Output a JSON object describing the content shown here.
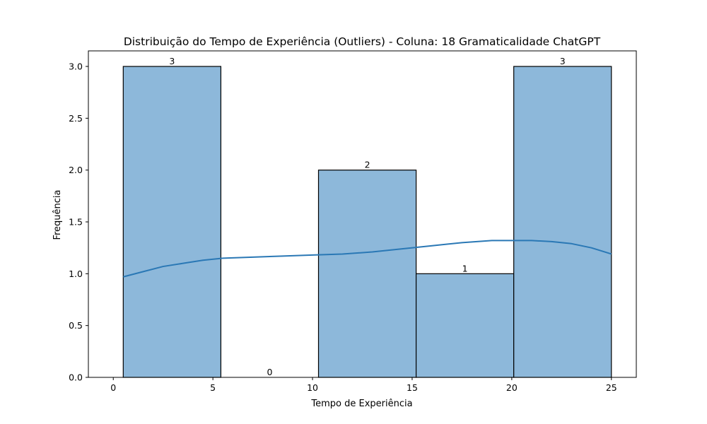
{
  "chart_data": {
    "type": "bar",
    "title": "Distribuição do Tempo de Experiência (Outliers) - Coluna: 18 Gramaticalidade ChatGPT",
    "xlabel": "Tempo de Experiência",
    "ylabel": "Frequência",
    "xlim": [
      -1.25,
      26.25
    ],
    "ylim": [
      0,
      3.15
    ],
    "x_ticks": [
      0,
      5,
      10,
      15,
      20,
      25
    ],
    "x_tick_labels": [
      "0",
      "5",
      "10",
      "15",
      "20",
      "25"
    ],
    "y_ticks": [
      0,
      0.5,
      1.0,
      1.5,
      2.0,
      2.5,
      3.0
    ],
    "y_tick_labels": [
      "0.0",
      "0.5",
      "1.0",
      "1.5",
      "2.0",
      "2.5",
      "3.0"
    ],
    "bins": [
      {
        "x0": 0.5,
        "x1": 5.4,
        "count": 3,
        "label": "3"
      },
      {
        "x0": 5.4,
        "x1": 10.3,
        "count": 0,
        "label": "0"
      },
      {
        "x0": 10.3,
        "x1": 15.2,
        "count": 2,
        "label": "2"
      },
      {
        "x0": 15.2,
        "x1": 20.1,
        "count": 1,
        "label": "1"
      },
      {
        "x0": 20.1,
        "x1": 25.0,
        "count": 3,
        "label": "3"
      }
    ],
    "kde": {
      "x": [
        0.5,
        1.5,
        2.5,
        3.5,
        4.5,
        5.5,
        7.0,
        8.5,
        10.0,
        11.5,
        13.0,
        14.5,
        16.0,
        17.5,
        19.0,
        20.0,
        21.0,
        22.0,
        23.0,
        24.0,
        25.0
      ],
      "y": [
        0.97,
        1.02,
        1.07,
        1.1,
        1.13,
        1.15,
        1.16,
        1.17,
        1.18,
        1.19,
        1.21,
        1.24,
        1.27,
        1.3,
        1.32,
        1.32,
        1.32,
        1.31,
        1.29,
        1.25,
        1.19
      ]
    },
    "colors": {
      "bar_fill": "#8db8da",
      "bar_edge": "#000000",
      "kde_line": "#2a78b5"
    },
    "grid": false,
    "legend": "none"
  }
}
